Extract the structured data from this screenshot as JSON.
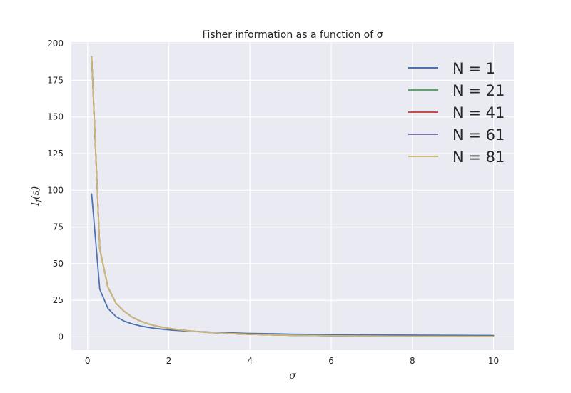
{
  "chart_data": {
    "type": "line",
    "title": "Fisher information as a function of σ",
    "xlabel": "σ",
    "ylabel": "I_f(s)",
    "xlim": [
      -0.4,
      10.5
    ],
    "ylim": [
      -9,
      201
    ],
    "xticks": [
      0,
      2,
      4,
      6,
      8,
      10
    ],
    "yticks": [
      0,
      25,
      50,
      75,
      100,
      125,
      150,
      175,
      200
    ],
    "grid": true,
    "legend_position": "top-right",
    "x": [
      0.1,
      0.3,
      0.5,
      0.7,
      0.9,
      1.1,
      1.3,
      1.5,
      1.7,
      1.9,
      2.1,
      2.5,
      3.0,
      3.5,
      4.0,
      4.5,
      5.0,
      6.0,
      7.0,
      8.0,
      9.0,
      10.0
    ],
    "series": [
      {
        "name": "N = 1",
        "color": "#4c72b0",
        "values": [
          97.5,
          32.5,
          19.5,
          13.9,
          10.8,
          8.9,
          7.5,
          6.5,
          5.7,
          5.1,
          4.6,
          3.9,
          3.3,
          2.8,
          2.4,
          2.2,
          1.9,
          1.6,
          1.4,
          1.2,
          1.1,
          1.0
        ]
      },
      {
        "name": "N = 21",
        "color": "#55a868",
        "values": [
          191.0,
          60.0,
          34.0,
          23.0,
          17.5,
          13.5,
          10.8,
          8.9,
          7.4,
          6.3,
          5.4,
          4.1,
          3.0,
          2.3,
          1.8,
          1.4,
          1.1,
          0.8,
          0.6,
          0.45,
          0.35,
          0.3
        ]
      },
      {
        "name": "N = 41",
        "color": "#c44e52",
        "values": [
          191.0,
          60.0,
          34.0,
          23.0,
          17.5,
          13.5,
          10.8,
          8.9,
          7.4,
          6.3,
          5.4,
          4.1,
          3.0,
          2.3,
          1.8,
          1.4,
          1.1,
          0.8,
          0.6,
          0.45,
          0.35,
          0.3
        ]
      },
      {
        "name": "N = 61",
        "color": "#8172b2",
        "values": [
          191.0,
          60.0,
          34.0,
          23.0,
          17.5,
          13.5,
          10.8,
          8.9,
          7.4,
          6.3,
          5.4,
          4.1,
          3.0,
          2.3,
          1.8,
          1.4,
          1.1,
          0.8,
          0.6,
          0.45,
          0.35,
          0.3
        ]
      },
      {
        "name": "N = 81",
        "color": "#ccb974",
        "values": [
          191.0,
          60.0,
          34.0,
          23.0,
          17.5,
          13.5,
          10.8,
          8.9,
          7.4,
          6.3,
          5.4,
          4.1,
          3.0,
          2.3,
          1.8,
          1.4,
          1.1,
          0.8,
          0.6,
          0.45,
          0.35,
          0.3
        ]
      }
    ]
  }
}
